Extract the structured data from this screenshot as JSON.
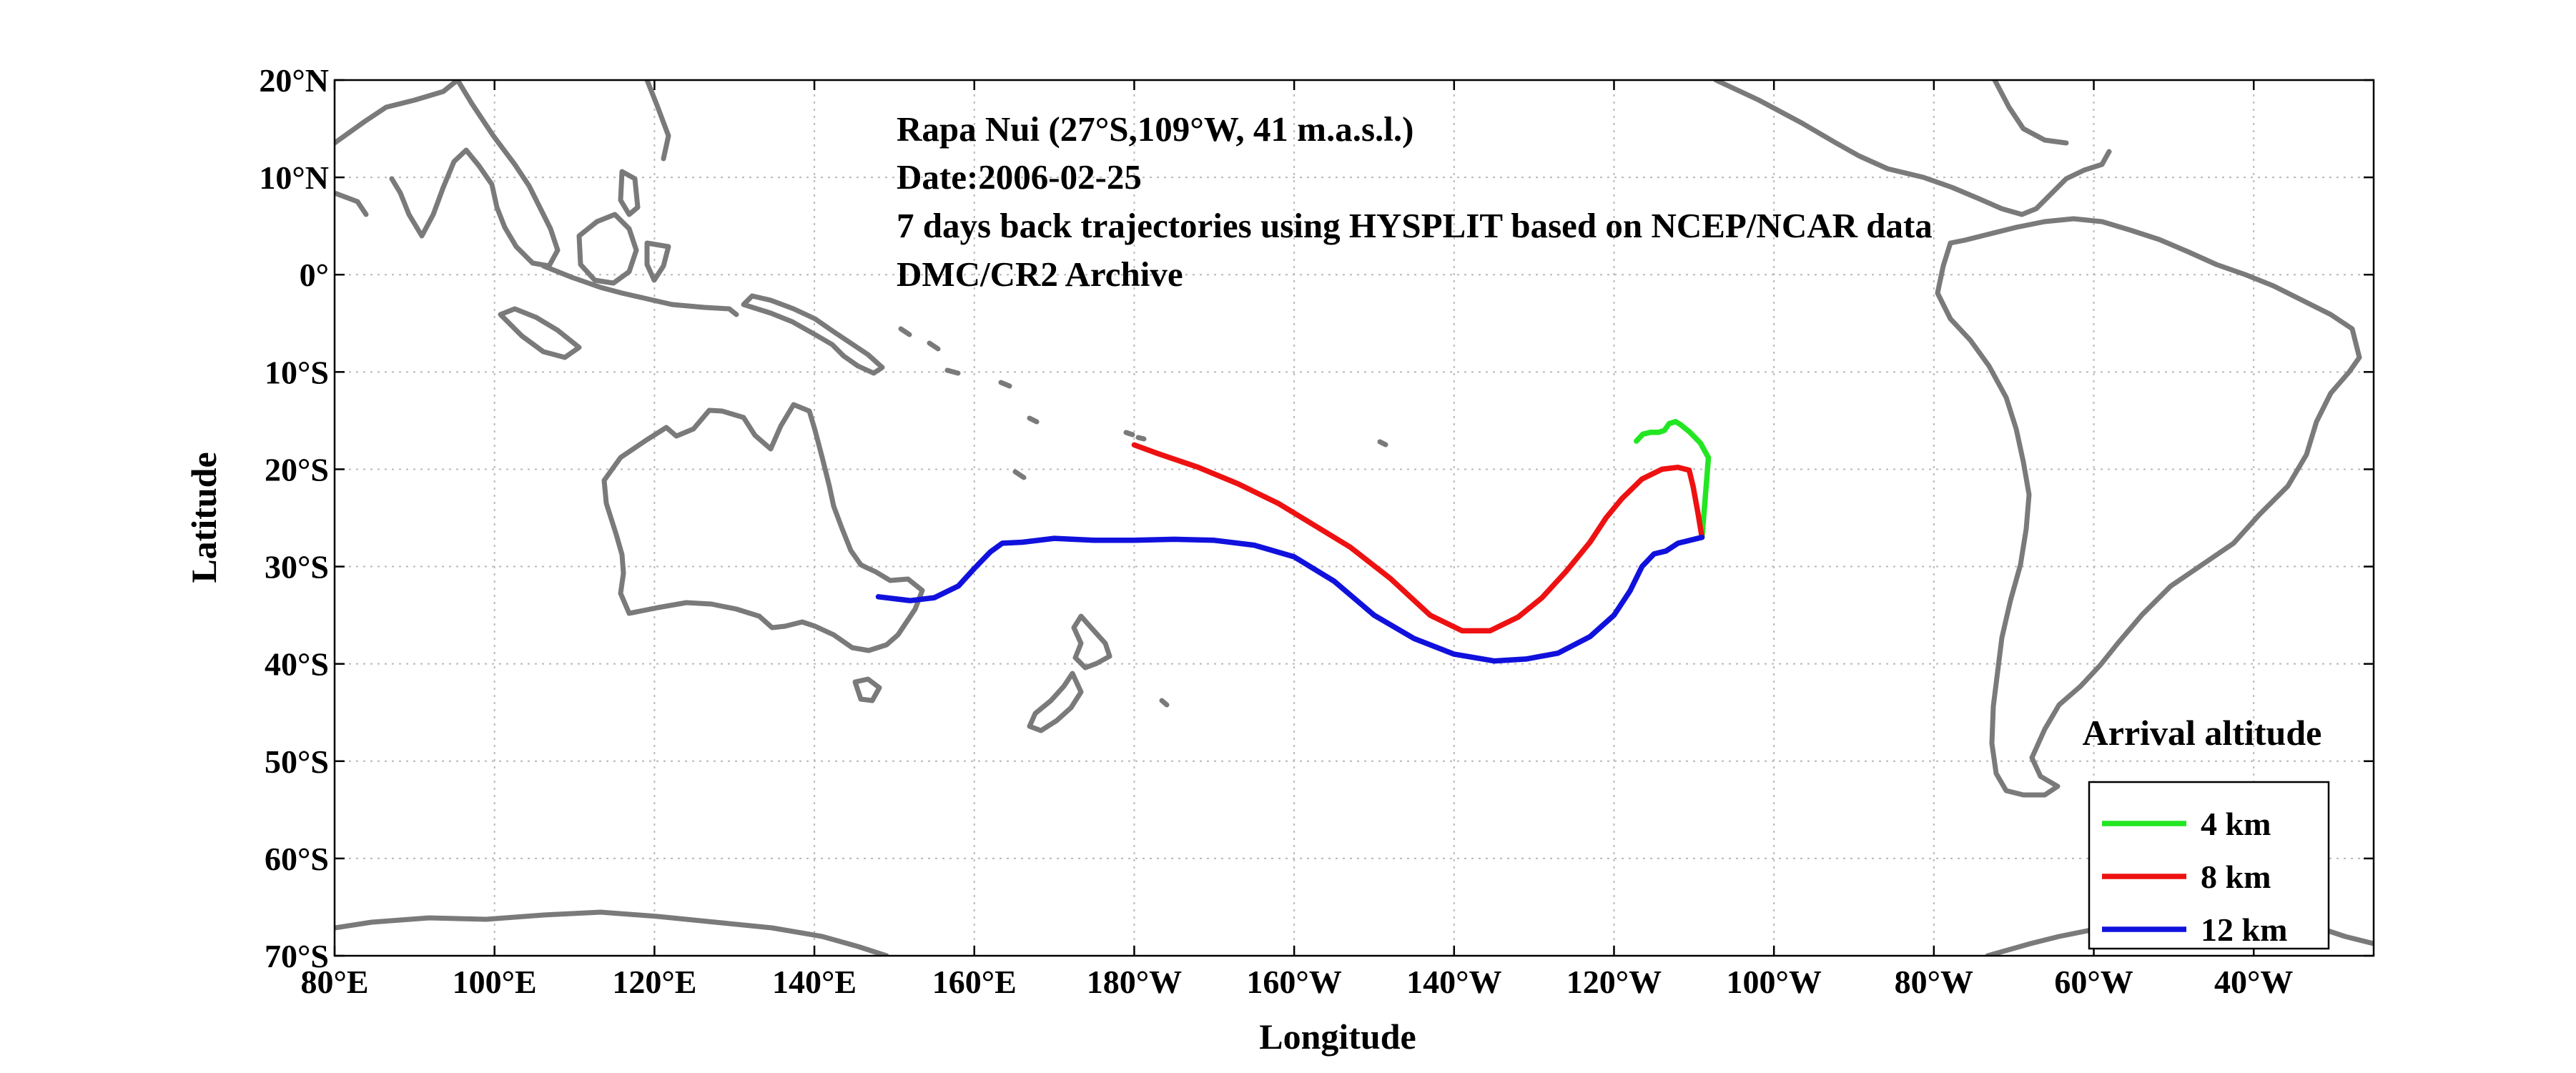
{
  "figure": {
    "info_lines": [
      "Rapa Nui (27°S,109°W, 41 m.a.s.l.)",
      "Date:2006-02-25",
      "7 days back trajectories using HYSPLIT based on NCEP/NCAR data",
      "DMC/CR2 Archive"
    ],
    "coast_color": "#7a7a7a",
    "grid": true
  },
  "chart_data": {
    "type": "line",
    "projection": "equirectangular",
    "xlabel": "Longitude",
    "ylabel": "Latitude",
    "xlim": [
      80,
      335
    ],
    "ylim": [
      -70,
      20
    ],
    "x_ticks": [
      {
        "value": 80,
        "label": "80°E"
      },
      {
        "value": 100,
        "label": "100°E"
      },
      {
        "value": 120,
        "label": "120°E"
      },
      {
        "value": 140,
        "label": "140°E"
      },
      {
        "value": 160,
        "label": "160°E"
      },
      {
        "value": 180,
        "label": "180°W"
      },
      {
        "value": 200,
        "label": "160°W"
      },
      {
        "value": 220,
        "label": "140°W"
      },
      {
        "value": 240,
        "label": "120°W"
      },
      {
        "value": 260,
        "label": "100°W"
      },
      {
        "value": 280,
        "label": "80°W"
      },
      {
        "value": 300,
        "label": "60°W"
      },
      {
        "value": 320,
        "label": "40°W"
      }
    ],
    "y_ticks": [
      {
        "value": 20,
        "label": "20°N"
      },
      {
        "value": 10,
        "label": "10°N"
      },
      {
        "value": 0,
        "label": "0°"
      },
      {
        "value": -10,
        "label": "10°S"
      },
      {
        "value": -20,
        "label": "20°S"
      },
      {
        "value": -30,
        "label": "30°S"
      },
      {
        "value": -40,
        "label": "40°S"
      },
      {
        "value": -50,
        "label": "50°S"
      },
      {
        "value": -60,
        "label": "60°S"
      },
      {
        "value": -70,
        "label": "70°S"
      }
    ],
    "legend": {
      "title": "Arrival altitude",
      "position": "bottom-right"
    },
    "series": [
      {
        "name": "4 km",
        "color": "#22e622",
        "points": [
          [
            251,
            -27
          ],
          [
            251.3,
            -24
          ],
          [
            251.6,
            -21
          ],
          [
            251.8,
            -18.8
          ],
          [
            250.8,
            -17.3
          ],
          [
            249.5,
            -16.2
          ],
          [
            248.3,
            -15.4
          ],
          [
            247.7,
            -15.1
          ],
          [
            246.9,
            -15.3
          ],
          [
            246.3,
            -16
          ],
          [
            245.6,
            -16.2
          ],
          [
            244.6,
            -16.2
          ],
          [
            243.6,
            -16.4
          ],
          [
            242.8,
            -17.1
          ]
        ]
      },
      {
        "name": "8 km",
        "color": "#ee1111",
        "points": [
          [
            251,
            -27
          ],
          [
            250.5,
            -24.5
          ],
          [
            249.9,
            -21.8
          ],
          [
            249.4,
            -20.1
          ],
          [
            248,
            -19.8
          ],
          [
            246,
            -20
          ],
          [
            243.5,
            -21
          ],
          [
            241,
            -23
          ],
          [
            239,
            -25
          ],
          [
            237,
            -27.5
          ],
          [
            234,
            -30.5
          ],
          [
            231,
            -33.2
          ],
          [
            228,
            -35.2
          ],
          [
            224.5,
            -36.6
          ],
          [
            221,
            -36.6
          ],
          [
            217,
            -35
          ],
          [
            212,
            -31.2
          ],
          [
            207,
            -28
          ],
          [
            203,
            -26
          ],
          [
            198,
            -23.5
          ],
          [
            193,
            -21.5
          ],
          [
            188,
            -19.8
          ],
          [
            183,
            -18.4
          ],
          [
            180,
            -17.5
          ]
        ]
      },
      {
        "name": "12 km",
        "color": "#1111dd",
        "points": [
          [
            251,
            -27
          ],
          [
            248,
            -27.6
          ],
          [
            246.5,
            -28.4
          ],
          [
            245,
            -28.7
          ],
          [
            243.5,
            -30
          ],
          [
            242,
            -32.5
          ],
          [
            240,
            -35
          ],
          [
            237,
            -37.2
          ],
          [
            233,
            -38.9
          ],
          [
            229,
            -39.5
          ],
          [
            225,
            -39.7
          ],
          [
            220,
            -39
          ],
          [
            215,
            -37.4
          ],
          [
            210,
            -35
          ],
          [
            205,
            -31.5
          ],
          [
            200,
            -29
          ],
          [
            195,
            -27.8
          ],
          [
            190,
            -27.3
          ],
          [
            185,
            -27.2
          ],
          [
            180,
            -27.3
          ],
          [
            175,
            -27.3
          ],
          [
            170,
            -27.1
          ],
          [
            166,
            -27.5
          ],
          [
            163.5,
            -27.6
          ],
          [
            162,
            -28.5
          ],
          [
            160,
            -30.2
          ],
          [
            158,
            -32
          ],
          [
            155,
            -33.2
          ],
          [
            152,
            -33.5
          ],
          [
            148,
            -33.1
          ]
        ]
      }
    ]
  }
}
